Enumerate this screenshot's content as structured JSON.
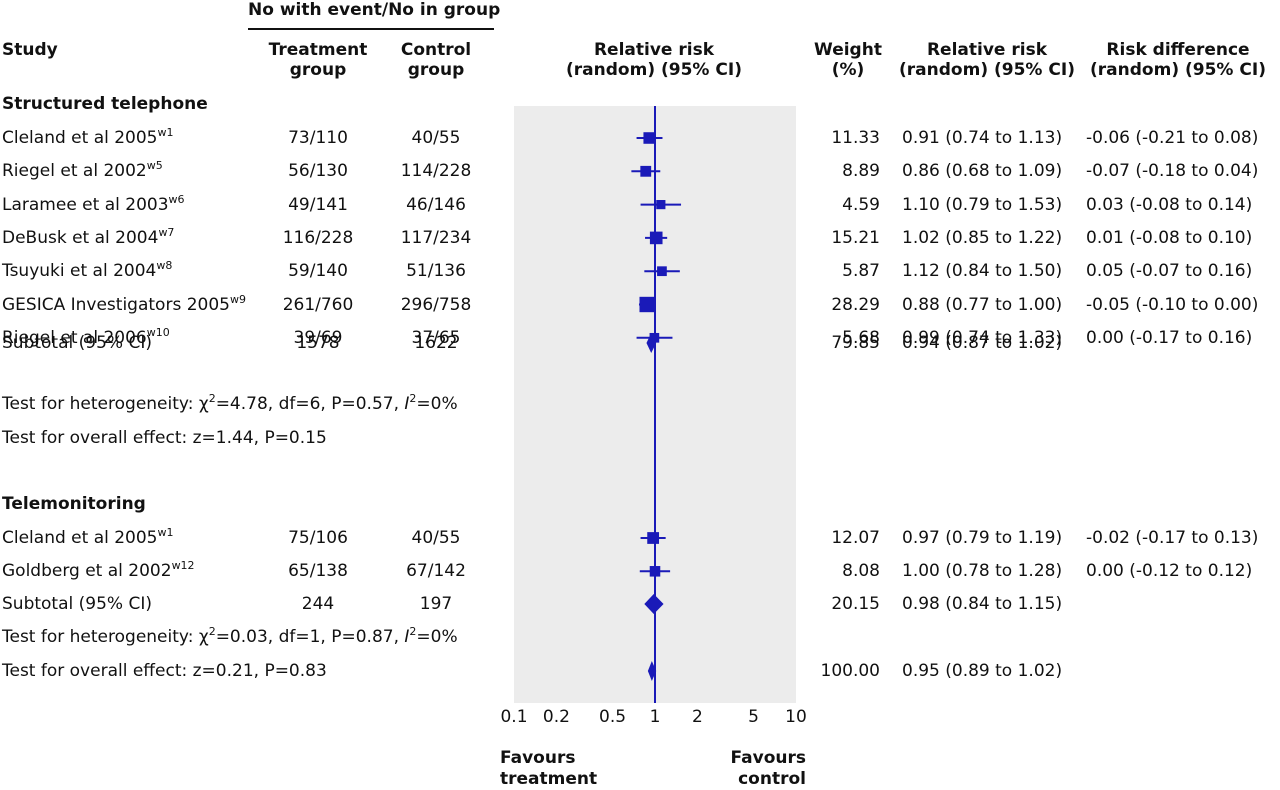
{
  "header": {
    "group_heading": "No with event/No in group",
    "col_study": "Study",
    "col_treatment": [
      "Treatment",
      "group"
    ],
    "col_control": [
      "Control",
      "group"
    ],
    "col_plot": [
      "Relative risk",
      "(random) (95% CI)"
    ],
    "col_weight": [
      "Weight",
      "(%)"
    ],
    "col_rr": [
      "Relative risk",
      "(random) (95% CI)"
    ],
    "col_rd": [
      "Risk difference",
      "(random) (95% CI)"
    ]
  },
  "footer": {
    "favours_left": [
      "Favours",
      "treatment"
    ],
    "favours_right": [
      "Favours",
      "control"
    ]
  },
  "colors": {
    "marker": "#1a1ab8",
    "panel": "#ececec",
    "text": "#111111"
  },
  "chart_data": {
    "type": "forest",
    "x_scale": "log",
    "xlim": [
      0.1,
      10
    ],
    "x_ticks": [
      0.1,
      0.2,
      0.5,
      1,
      2,
      5,
      10
    ],
    "x_tick_labels": [
      "0.1",
      "0.2",
      "0.5",
      "1",
      "2",
      "5",
      "10"
    ],
    "reference_line": 1,
    "groups": [
      {
        "title": "Structured telephone",
        "studies": [
          {
            "name": "Cleland et al 2005",
            "ref": "w1",
            "treatment": "73/110",
            "control": "40/55",
            "weight": "11.33",
            "rr_text": "0.91 (0.74 to 1.13)",
            "rd_text": "-0.06 (-0.21 to 0.08)",
            "rr": 0.91,
            "lo": 0.74,
            "hi": 1.13,
            "w": 11.33
          },
          {
            "name": "Riegel et al 2002",
            "ref": "w5",
            "treatment": "56/130",
            "control": "114/228",
            "weight": "8.89",
            "rr_text": "0.86 (0.68 to 1.09)",
            "rd_text": "-0.07 (-0.18 to 0.04)",
            "rr": 0.86,
            "lo": 0.68,
            "hi": 1.09,
            "w": 8.89
          },
          {
            "name": "Laramee et al 2003",
            "ref": "w6",
            "treatment": "49/141",
            "control": "46/146",
            "weight": "4.59",
            "rr_text": "1.10 (0.79 to 1.53)",
            "rd_text": "0.03 (-0.08 to 0.14)",
            "rr": 1.1,
            "lo": 0.79,
            "hi": 1.53,
            "w": 4.59
          },
          {
            "name": "DeBusk et al 2004",
            "ref": "w7",
            "treatment": "116/228",
            "control": "117/234",
            "weight": "15.21",
            "rr_text": "1.02 (0.85 to 1.22)",
            "rd_text": "0.01 (-0.08 to 0.10)",
            "rr": 1.02,
            "lo": 0.85,
            "hi": 1.22,
            "w": 15.21
          },
          {
            "name": "Tsuyuki et al 2004",
            "ref": "w8",
            "treatment": "59/140",
            "control": "51/136",
            "weight": "5.87",
            "rr_text": "1.12 (0.84 to 1.50)",
            "rd_text": "0.05 (-0.07 to 0.16)",
            "rr": 1.12,
            "lo": 0.84,
            "hi": 1.5,
            "w": 5.87
          },
          {
            "name": "GESICA Investigators 2005",
            "ref": "w9",
            "treatment": "261/760",
            "control": "296/758",
            "weight": "28.29",
            "rr_text": "0.88 (0.77 to 1.00)",
            "rd_text": "-0.05 (-0.10 to 0.00)",
            "rr": 0.88,
            "lo": 0.77,
            "hi": 1.0,
            "w": 28.29
          },
          {
            "name": "Riegel et al 2006",
            "ref": "w10",
            "treatment": "39/69",
            "control": "37/65",
            "weight": "5.68",
            "rr_text": "0.99 (0.74 to 1.33)",
            "rd_text": "0.00 (-0.17 to 0.16)",
            "rr": 0.99,
            "lo": 0.74,
            "hi": 1.33,
            "w": 5.68
          }
        ],
        "subtotal": {
          "label": "Subtotal (95% CI)",
          "treatment": "1578",
          "control": "1622",
          "weight": "79.85",
          "rr_text": "0.94 (0.87 to 1.02)",
          "rr": 0.94,
          "lo": 0.87,
          "hi": 1.02
        },
        "heterogeneity": {
          "pre": "Test for heterogeneity: χ",
          "sup": "2",
          "mid": "=4.78, df=6, P=0.57, ",
          "i": "I",
          "sup2": "2",
          "post": "=0%"
        },
        "overall": "Test for overall effect: z=1.44, P=0.15"
      },
      {
        "title": "Telemonitoring",
        "studies": [
          {
            "name": "Cleland et al 2005",
            "ref": "w1",
            "treatment": "75/106",
            "control": "40/55",
            "weight": "12.07",
            "rr_text": "0.97 (0.79 to 1.19)",
            "rd_text": "-0.02 (-0.17 to 0.13)",
            "rr": 0.97,
            "lo": 0.79,
            "hi": 1.19,
            "w": 12.07
          },
          {
            "name": "Goldberg et al 2002",
            "ref": "w12",
            "treatment": "65/138",
            "control": "67/142",
            "weight": "8.08",
            "rr_text": "1.00 (0.78 to 1.28)",
            "rd_text": "0.00 (-0.12 to 0.12)",
            "rr": 1.0,
            "lo": 0.78,
            "hi": 1.28,
            "w": 8.08
          }
        ],
        "subtotal": {
          "label": "Subtotal (95% CI)",
          "treatment": "244",
          "control": "197",
          "weight": "20.15",
          "rr_text": "0.98 (0.84 to 1.15)",
          "rr": 0.98,
          "lo": 0.84,
          "hi": 1.15
        },
        "heterogeneity": {
          "pre": "Test for heterogeneity: χ",
          "sup": "2",
          "mid": "=0.03, df=1, P=0.87, ",
          "i": "I",
          "sup2": "2",
          "post": "=0%"
        }
      }
    ],
    "overall": {
      "label": "Test for overall effect: z=0.21, P=0.83",
      "weight": "100.00",
      "rr_text": "0.95 (0.89 to 1.02)",
      "rr": 0.95,
      "lo": 0.89,
      "hi": 1.02
    }
  }
}
